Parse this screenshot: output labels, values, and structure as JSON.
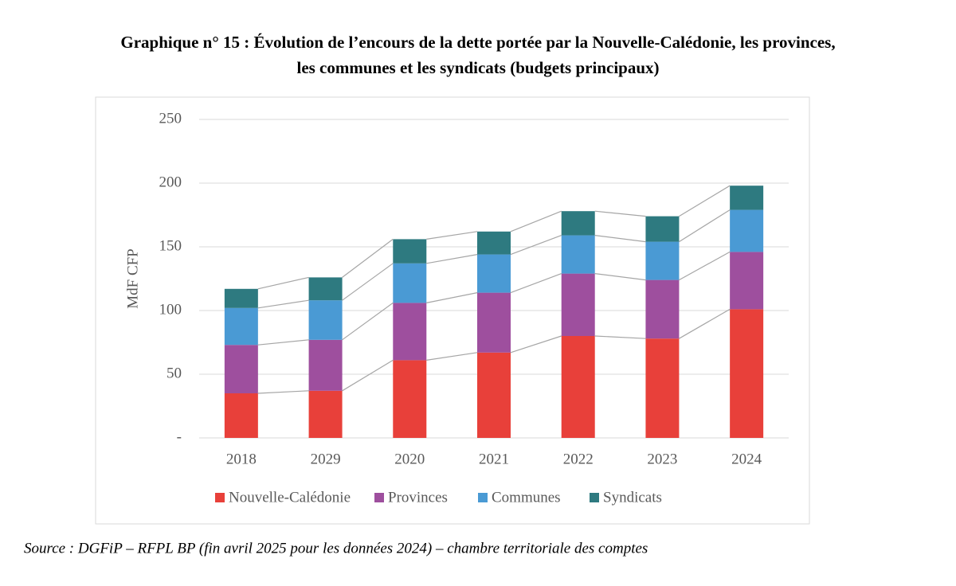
{
  "chart_data": {
    "type": "stacked_bar",
    "title": "Graphique n° 15 : Évolution de l’encours de la dette portée par la Nouvelle-Calédonie, les provinces,",
    "subtitle": "les communes et les syndicats (budgets principaux)",
    "ylabel": "MdF CFP",
    "source": "Source : DGFiP – RFPL BP (fin avril 2025 pour les données 2024) – chambre territoriale des comptes",
    "categories": [
      "2018",
      "2029",
      "2020",
      "2021",
      "2022",
      "2023",
      "2024"
    ],
    "series": [
      {
        "name": "Nouvelle-Calédonie",
        "color": "#e8403a",
        "values": [
          35,
          37,
          61,
          67,
          80,
          78,
          101
        ]
      },
      {
        "name": "Provinces",
        "color": "#9e4f9e",
        "values": [
          38,
          40,
          45,
          47,
          49,
          46,
          45
        ]
      },
      {
        "name": "Communes",
        "color": "#4a9ad4",
        "values": [
          29,
          31,
          31,
          30,
          30,
          30,
          33
        ]
      },
      {
        "name": "Syndicats",
        "color": "#2e7a80",
        "values": [
          15,
          18,
          19,
          18,
          19,
          20,
          19
        ]
      }
    ],
    "ylim": [
      0,
      250
    ],
    "yticks": [
      {
        "value": 0,
        "label": "-"
      },
      50,
      100,
      150,
      200,
      250
    ],
    "grid": true,
    "legend": "bottom"
  }
}
